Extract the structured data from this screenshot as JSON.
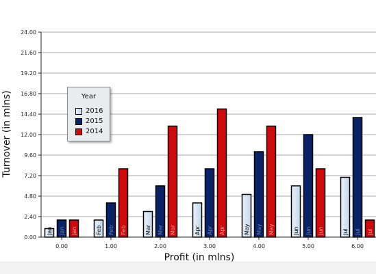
{
  "chart_data": {
    "type": "bar",
    "ylabel": "Turnover (in mlns)",
    "xlabel": "Profit (in mlns)",
    "ylim": [
      0,
      24
    ],
    "yticks": [
      "0.00",
      "2.40",
      "4.80",
      "7.20",
      "9.60",
      "12.00",
      "14.40",
      "16.80",
      "19.20",
      "21.60",
      "24.00"
    ],
    "xticks": [
      "0.00",
      "1.00",
      "2.00",
      "3.00",
      "4.00",
      "5.00",
      "6.00"
    ],
    "categories": [
      "Jan",
      "Feb",
      "Mar",
      "Apr",
      "May",
      "Jun",
      "Jul"
    ],
    "legend_title": "Year",
    "legend_position": "left",
    "grid": true,
    "series": [
      {
        "name": "2016",
        "color": "#c3d8ec",
        "values": [
          1.0,
          2.0,
          3.0,
          4.0,
          5.0,
          6.0,
          7.0
        ]
      },
      {
        "name": "2015",
        "color": "#0a2266",
        "values": [
          2.0,
          4.0,
          6.0,
          8.0,
          10.0,
          12.0,
          14.0
        ]
      },
      {
        "name": "2014",
        "color": "#d00a0a",
        "values": [
          2.0,
          8.0,
          13.0,
          15.0,
          13.0,
          8.0,
          2.0
        ]
      }
    ]
  }
}
